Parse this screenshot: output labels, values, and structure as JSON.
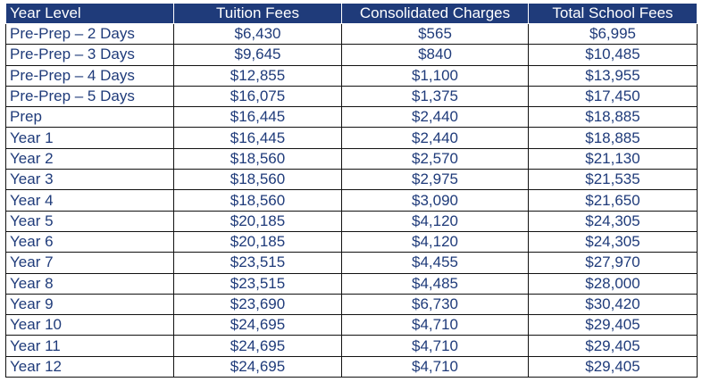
{
  "table": {
    "headers": [
      "Year Level",
      "Tuition Fees",
      "Consolidated Charges",
      "Total School Fees"
    ],
    "rows": [
      [
        "Pre-Prep – 2 Days",
        "$6,430",
        "$565",
        "$6,995"
      ],
      [
        "Pre-Prep – 3 Days",
        "$9,645",
        "$840",
        "$10,485"
      ],
      [
        "Pre-Prep – 4 Days",
        "$12,855",
        "$1,100",
        "$13,955"
      ],
      [
        "Pre-Prep – 5 Days",
        "$16,075",
        "$1,375",
        "$17,450"
      ],
      [
        "Prep",
        "$16,445",
        "$2,440",
        "$18,885"
      ],
      [
        "Year 1",
        "$16,445",
        "$2,440",
        "$18,885"
      ],
      [
        "Year 2",
        "$18,560",
        "$2,570",
        "$21,130"
      ],
      [
        "Year 3",
        "$18,560",
        "$2,975",
        "$21,535"
      ],
      [
        "Year 4",
        "$18,560",
        "$3,090",
        "$21,650"
      ],
      [
        "Year 5",
        "$20,185",
        "$4,120",
        "$24,305"
      ],
      [
        "Year 6",
        "$20,185",
        "$4,120",
        "$24,305"
      ],
      [
        "Year 7",
        "$23,515",
        "$4,455",
        "$27,970"
      ],
      [
        "Year 8",
        "$23,515",
        "$4,485",
        "$28,000"
      ],
      [
        "Year 9",
        "$23,690",
        "$6,730",
        "$30,420"
      ],
      [
        "Year 10",
        "$24,695",
        "$4,710",
        "$29,405"
      ],
      [
        "Year 11",
        "$24,695",
        "$4,710",
        "$29,405"
      ],
      [
        "Year 12",
        "$24,695",
        "$4,710",
        "$29,405"
      ]
    ]
  },
  "colors": {
    "header_bg": "#1f3b7a",
    "header_text": "#ffffff",
    "body_text": "#1f3b7a",
    "grid": "#111111"
  }
}
